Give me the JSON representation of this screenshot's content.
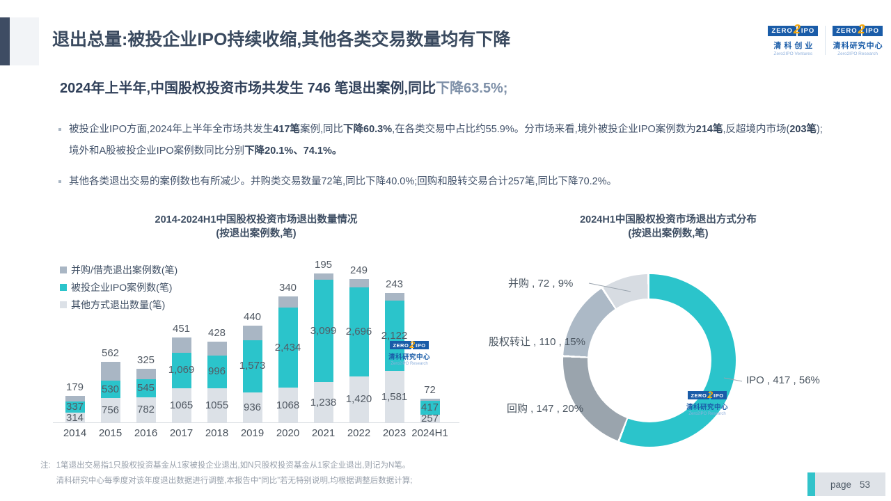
{
  "slide": {
    "title": "退出总量:被投企业IPO持续收缩,其他各类交易数量均有下降",
    "subtitle": {
      "dark": "2024年上半年,中国股权投资市场共发生 746 笔退出案例,同比",
      "light": "下降63.5%;"
    },
    "bullets": [
      {
        "segments": [
          {
            "t": "被投企业IPO方面,2024年上半年全市场共发生",
            "b": 0
          },
          {
            "t": "417笔",
            "b": 1
          },
          {
            "t": "案例,同比",
            "b": 0
          },
          {
            "t": "下降60.3%",
            "b": 1
          },
          {
            "t": ",在各类交易中占比约55.9%。分市场来看,境外被投企业IPO案例数为",
            "b": 0
          },
          {
            "t": "214笔",
            "b": 1
          },
          {
            "t": ",反超境内市场(",
            "b": 0
          },
          {
            "t": "203笔",
            "b": 1
          },
          {
            "t": ");境外和A股被投企业IPO案例数同比分别",
            "b": 0
          },
          {
            "t": "下降20.1%、74.1%。",
            "b": 1
          }
        ]
      },
      {
        "segments": [
          {
            "t": "其他各类退出交易的案例数也有所减少。并购类交易数量72笔,同比下降40.0%;回购和股转交易合计257笔,同比下降70.2%。",
            "b": 0
          }
        ]
      }
    ],
    "note": {
      "prefix": "注:",
      "lines": [
        "1笔退出交易指1只股权投资基金从1家被投企业退出,如N只股权投资基金从1家企业退出,则记为N笔。",
        "清科研究中心每季度对该年度退出数据进行调整,本报告中“同比”若无特别说明,均根据调整后数据计算;"
      ]
    },
    "page": {
      "label": "page",
      "number": "53"
    }
  },
  "logos": {
    "ventures": {
      "zero": "ZERO",
      "two": "2",
      "ipo": "IPO",
      "cn": "清科创业",
      "en": "Zero2IPO Ventures"
    },
    "research": {
      "zero": "ZERO",
      "two": "2",
      "ipo": "IPO",
      "cn": "清科研究中心",
      "en": "Zero2IPO Research"
    }
  },
  "colors": {
    "accent_teal": "#2BC4CB",
    "title_text": "#3A4A5F",
    "logo_blue": "#1A5CA8",
    "logo_orange": "#F6A70A"
  },
  "chart_data": [
    {
      "type": "bar",
      "stacked": true,
      "title": "2014-2024H1中国股权投资市场退出数量情况",
      "subtitle": "(按退出案例数,笔)",
      "legend_position": "top-left",
      "grid": false,
      "categories": [
        "2014",
        "2015",
        "2016",
        "2017",
        "2018",
        "2019",
        "2020",
        "2021",
        "2022",
        "2023",
        "2024H1"
      ],
      "stack_order_bottom_to_top": [
        "其他方式退出数量(笔)",
        "被投企业IPO案例数(笔)",
        "并购/借壳退出案例数(笔)"
      ],
      "series": [
        {
          "name": "并购/借壳退出案例数(笔)",
          "color": "#A9B6C4",
          "values": [
            179,
            562,
            325,
            451,
            428,
            440,
            340,
            195,
            249,
            243,
            72
          ],
          "labels": [
            "179",
            "562",
            "325",
            "451",
            "428",
            "440",
            "340",
            "195",
            "249",
            "243",
            "72"
          ]
        },
        {
          "name": "被投企业IPO案例数(笔)",
          "color": "#2BC4CB",
          "values": [
            337,
            530,
            545,
            1069,
            996,
            1573,
            2434,
            3099,
            2696,
            2122,
            417
          ],
          "labels": [
            "337",
            "530",
            "545",
            "1,069",
            "996",
            "1,573",
            "2,434",
            "3,099",
            "2,696",
            "2,122",
            "417"
          ]
        },
        {
          "name": "其他方式退出数量(笔)",
          "color": "#DCE1E7",
          "values": [
            314,
            756,
            782,
            1065,
            1055,
            936,
            1068,
            1238,
            1420,
            1581,
            257
          ],
          "labels": [
            "314",
            "756",
            "782",
            "1065",
            "1055",
            "936",
            "1068",
            "1,238",
            "1,420",
            "1,581",
            "257"
          ]
        }
      ]
    },
    {
      "type": "donut",
      "title": "2024H1中国股权投资市场退出方式分布",
      "subtitle": "(按退出案例数,笔)",
      "start_angle_deg": 0,
      "direction": "clockwise",
      "slices": [
        {
          "name": "IPO",
          "value": 417,
          "pct": 56,
          "color": "#2BC4CB",
          "label": "IPO , 417 , 56%"
        },
        {
          "name": "回购",
          "value": 147,
          "pct": 20,
          "color": "#9AA4AD",
          "label": "回购 , 147 , 20%"
        },
        {
          "name": "股权转让",
          "value": 110,
          "pct": 15,
          "color": "#ACB9C6",
          "label": "股权转让 , 110 , 15%"
        },
        {
          "name": "并购",
          "value": 72,
          "pct": 9,
          "color": "#D7DCE2",
          "label": "并购 , 72 , 9%"
        }
      ]
    }
  ]
}
